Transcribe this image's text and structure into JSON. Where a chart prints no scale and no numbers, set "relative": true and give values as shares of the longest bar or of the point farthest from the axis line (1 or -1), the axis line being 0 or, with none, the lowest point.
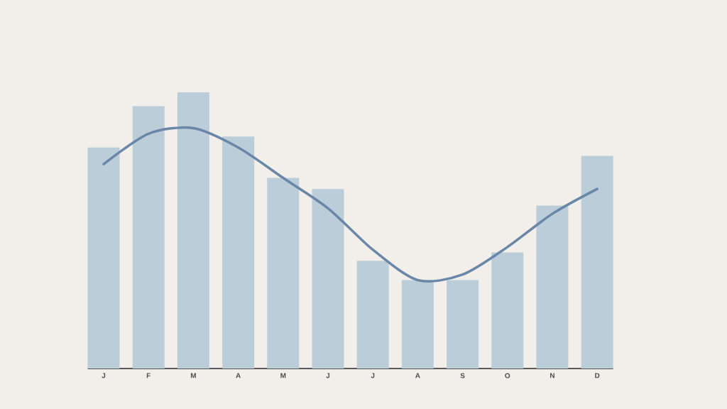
{
  "chart_data": {
    "type": "bar",
    "relative": true,
    "categories": [
      "J",
      "F",
      "M",
      "A",
      "M",
      "J",
      "J",
      "A",
      "S",
      "O",
      "N",
      "D"
    ],
    "series": [
      {
        "color": "#bccdda",
        "values": [
          0.8,
          0.95,
          1.0,
          0.84,
          0.69,
          0.65,
          0.39,
          0.32,
          0.32,
          0.42,
          0.59,
          0.77
        ]
      },
      {
        "type": "line",
        "color": "#6a87a8",
        "values": [
          0.74,
          0.85,
          0.87,
          0.8,
          0.69,
          0.58,
          0.43,
          0.32,
          0.34,
          0.44,
          0.56,
          0.65
        ]
      }
    ]
  }
}
